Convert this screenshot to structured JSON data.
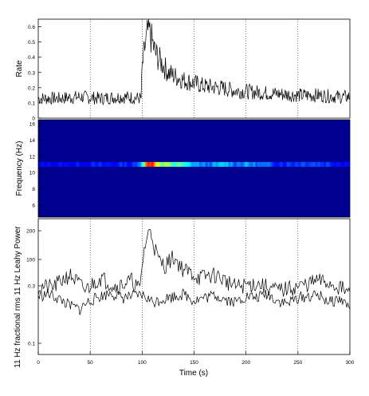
{
  "chart_data": [
    {
      "type": "line",
      "ylabel": "Rate",
      "xlim": [
        0,
        300
      ],
      "ylim": [
        0,
        0.65
      ],
      "y_ticks": [
        "0",
        "0.1",
        "0.2",
        "0.3",
        "0.4",
        "0.5",
        "0.6"
      ],
      "grid": true,
      "series": [
        {
          "x": [
            0,
            20,
            40,
            60,
            80,
            99,
            100,
            103,
            106,
            109,
            112,
            115,
            120,
            125,
            130,
            140,
            150,
            160,
            175,
            190,
            210,
            230,
            250,
            270,
            290,
            300
          ],
          "values": [
            0.13,
            0.13,
            0.14,
            0.13,
            0.14,
            0.13,
            0.33,
            0.48,
            0.58,
            0.52,
            0.44,
            0.4,
            0.35,
            0.3,
            0.28,
            0.25,
            0.23,
            0.21,
            0.2,
            0.18,
            0.17,
            0.16,
            0.15,
            0.15,
            0.14,
            0.14
          ]
        }
      ]
    },
    {
      "type": "heatmap",
      "ylabel": "Frequency (Hz)",
      "xlim": [
        0,
        300
      ],
      "ylim": [
        4.5,
        16.5
      ],
      "y_ticks": [
        "6",
        "8",
        "10",
        "12",
        "14",
        "16"
      ],
      "band_frequency": 11.0,
      "colormap": [
        "#00008f",
        "#0000ff",
        "#00ffff",
        "#ffff00",
        "#ff0000"
      ],
      "band": {
        "x": [
          0,
          60,
          95,
          100,
          105,
          110,
          115,
          120,
          125,
          130,
          135,
          140,
          150,
          160,
          170,
          180,
          190,
          200,
          220,
          240,
          260,
          280,
          300
        ],
        "intensity": [
          0.22,
          0.25,
          0.28,
          0.55,
          0.95,
          1.0,
          0.7,
          0.6,
          0.65,
          0.55,
          0.6,
          0.5,
          0.42,
          0.35,
          0.38,
          0.45,
          0.36,
          0.4,
          0.32,
          0.3,
          0.34,
          0.3,
          0.25
        ]
      }
    },
    {
      "type": "line",
      "ylabel": "11 Hz fractional rms 11 Hz Leahy Power",
      "xlim": [
        0,
        300
      ],
      "xlabel": "Time (s)",
      "x_ticks": [
        "0",
        "50",
        "100",
        "150",
        "200",
        "250",
        "300"
      ],
      "y_ticks": [
        "0.1",
        "0.3",
        "100",
        "200"
      ],
      "grid": true,
      "series": [
        {
          "x": [
            0,
            15,
            30,
            45,
            60,
            75,
            90,
            98,
            102,
            105,
            108,
            112,
            116,
            122,
            130,
            140,
            155,
            170,
            190,
            210,
            230,
            250,
            270,
            290,
            300
          ],
          "values": [
            70,
            70,
            90,
            65,
            85,
            70,
            80,
            65,
            150,
            200,
            230,
            160,
            120,
            110,
            130,
            100,
            85,
            90,
            70,
            75,
            65,
            70,
            80,
            70,
            60
          ]
        },
        {
          "x": [
            0,
            10,
            20,
            30,
            40,
            50,
            60,
            70,
            80,
            90,
            100,
            110,
            120,
            130,
            140,
            150,
            160,
            170,
            180,
            190,
            200,
            210,
            220,
            230,
            240,
            250,
            260,
            270,
            280,
            290,
            300
          ],
          "values": [
            0.2,
            0.22,
            0.18,
            0.14,
            0.12,
            0.17,
            0.2,
            0.23,
            0.19,
            0.2,
            0.21,
            0.16,
            0.18,
            0.2,
            0.22,
            0.17,
            0.19,
            0.21,
            0.18,
            0.16,
            0.2,
            0.19,
            0.22,
            0.17,
            0.15,
            0.19,
            0.2,
            0.21,
            0.16,
            0.18,
            0.13
          ]
        }
      ]
    }
  ]
}
